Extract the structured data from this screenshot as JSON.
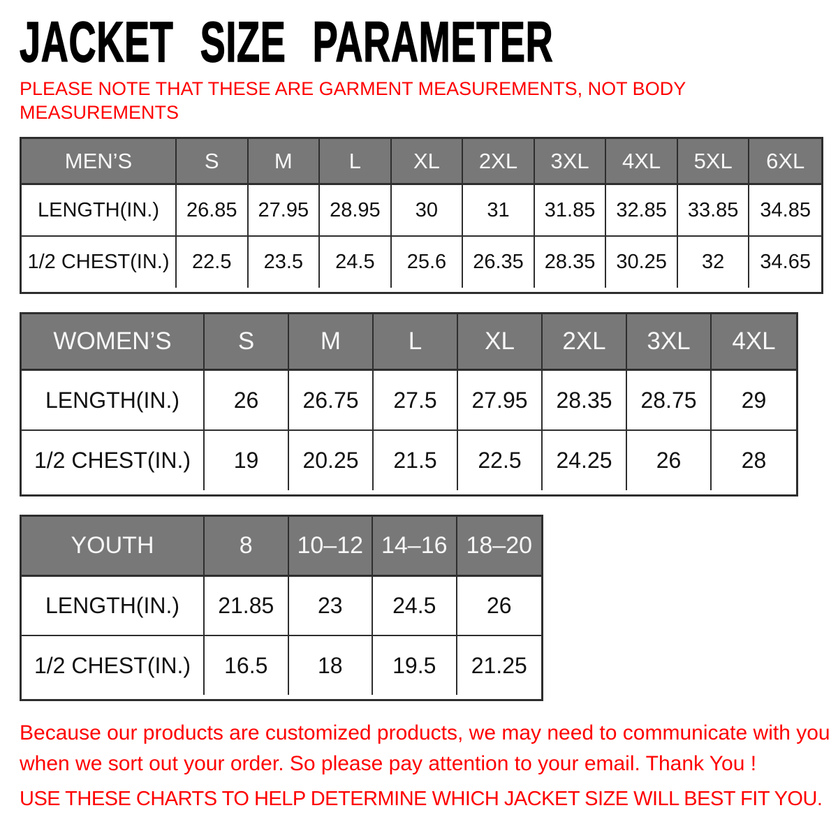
{
  "title": "JACKET SIZE PARAMETER",
  "top_note": {
    "lines": [
      "PLEASE NOTE THAT THESE ARE GARMENT MEASUREMENTS, NOT BODY",
      "MEASUREMENTS"
    ]
  },
  "chart_data": [
    {
      "type": "table",
      "title": "MEN’S",
      "columns": [
        "S",
        "M",
        "L",
        "XL",
        "2XL",
        "3XL",
        "4XL",
        "5XL",
        "6XL"
      ],
      "rows": [
        {
          "label": "LENGTH(IN.)",
          "values": [
            "26.85",
            "27.95",
            "28.95",
            "30",
            "31",
            "31.85",
            "32.85",
            "33.85",
            "34.85"
          ]
        },
        {
          "label": "1/2 CHEST(IN.)",
          "values": [
            "22.5",
            "23.5",
            "24.5",
            "25.6",
            "26.35",
            "28.35",
            "30.25",
            "32",
            "34.65"
          ]
        }
      ]
    },
    {
      "type": "table",
      "title": "WOMEN’S",
      "columns": [
        "S",
        "M",
        "L",
        "XL",
        "2XL",
        "3XL",
        "4XL"
      ],
      "rows": [
        {
          "label": "LENGTH(IN.)",
          "values": [
            "26",
            "26.75",
            "27.5",
            "27.95",
            "28.35",
            "28.75",
            "29"
          ]
        },
        {
          "label": "1/2 CHEST(IN.)",
          "values": [
            "19",
            "20.25",
            "21.5",
            "22.5",
            "24.25",
            "26",
            "28"
          ]
        }
      ]
    },
    {
      "type": "table",
      "title": "YOUTH",
      "columns": [
        "8",
        "10–12",
        "14–16",
        "18–20"
      ],
      "rows": [
        {
          "label": "LENGTH(IN.)",
          "values": [
            "21.85",
            "23",
            "24.5",
            "26"
          ]
        },
        {
          "label": "1/2 CHEST(IN.)",
          "values": [
            "16.5",
            "18",
            "19.5",
            "21.25"
          ]
        }
      ]
    }
  ],
  "bottom_notes": {
    "customization_lines": [
      "Because our products are customized products, we may need to communicate with you",
      "when we sort out your order. So please pay attention to your email. Thank You !"
    ],
    "usage": "USE THESE CHARTS TO HELP DETERMINE WHICH JACKET SIZE WILL BEST FIT YOU."
  },
  "colors": {
    "note_red": "#fe0000",
    "header_gray": "#787878",
    "header_text": "#f7f7f7",
    "border_dark": "#2e2e2e",
    "title_black": "#000000"
  }
}
